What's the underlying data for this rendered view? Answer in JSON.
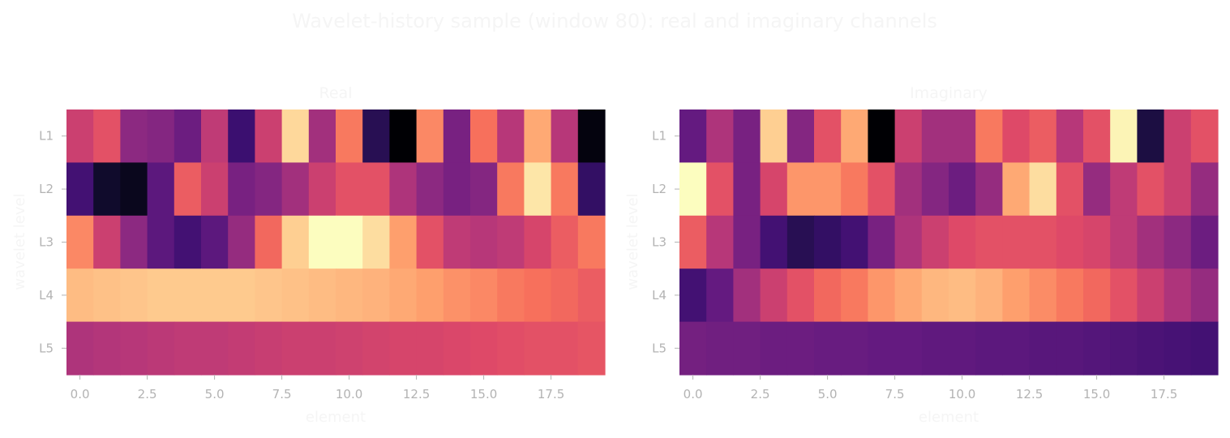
{
  "figure": {
    "title": "Wavelet-history sample (window 80): real and imaginary channels"
  },
  "colors": {
    "text": "#f5f5f5",
    "tick_text": "#b3b3b3",
    "colormap": "magma"
  },
  "chart_data": [
    {
      "type": "heatmap",
      "title": "Real",
      "xlabel": "element",
      "ylabel": "wavelet level",
      "colormap": "magma",
      "x_range": [
        -0.5,
        19.5
      ],
      "x_ticks": [
        "0.0",
        "2.5",
        "5.0",
        "7.5",
        "10.0",
        "12.5",
        "15.0",
        "17.5"
      ],
      "x_tick_values": [
        0,
        2.5,
        5,
        7.5,
        10,
        12.5,
        15,
        17.5
      ],
      "rows": [
        "L1",
        "L2",
        "L3",
        "L4",
        "L5"
      ],
      "columns": [
        0,
        1,
        2,
        3,
        4,
        5,
        6,
        7,
        8,
        9,
        10,
        11,
        12,
        13,
        14,
        15,
        16,
        17,
        18,
        19
      ],
      "values": [
        [
          0.55,
          0.62,
          0.4,
          0.38,
          0.32,
          0.52,
          0.2,
          0.55,
          0.92,
          0.45,
          0.72,
          0.15,
          0.0,
          0.75,
          0.35,
          0.7,
          0.5,
          0.82,
          0.5,
          0.02
        ],
        [
          0.22,
          0.08,
          0.05,
          0.28,
          0.65,
          0.55,
          0.35,
          0.38,
          0.45,
          0.55,
          0.62,
          0.62,
          0.48,
          0.4,
          0.35,
          0.38,
          0.72,
          0.95,
          0.72,
          0.18
        ],
        [
          0.75,
          0.55,
          0.4,
          0.28,
          0.22,
          0.28,
          0.42,
          0.68,
          0.9,
          1.0,
          1.0,
          0.93,
          0.8,
          0.62,
          0.52,
          0.5,
          0.52,
          0.58,
          0.65,
          0.72
        ],
        [
          0.86,
          0.87,
          0.88,
          0.89,
          0.89,
          0.89,
          0.89,
          0.88,
          0.87,
          0.86,
          0.85,
          0.84,
          0.82,
          0.8,
          0.77,
          0.75,
          0.72,
          0.7,
          0.68,
          0.65
        ],
        [
          0.48,
          0.49,
          0.5,
          0.51,
          0.52,
          0.52,
          0.53,
          0.54,
          0.55,
          0.55,
          0.56,
          0.57,
          0.58,
          0.58,
          0.59,
          0.6,
          0.61,
          0.62,
          0.62,
          0.63
        ]
      ]
    },
    {
      "type": "heatmap",
      "title": "Imaginary",
      "xlabel": "element",
      "ylabel": "wavelet level",
      "colormap": "magma",
      "x_range": [
        -0.5,
        19.5
      ],
      "x_ticks": [
        "0.0",
        "2.5",
        "5.0",
        "7.5",
        "10.0",
        "12.5",
        "15.0",
        "17.5"
      ],
      "x_tick_values": [
        0,
        2.5,
        5,
        7.5,
        10,
        12.5,
        15,
        17.5
      ],
      "rows": [
        "L1",
        "L2",
        "L3",
        "L4",
        "L5"
      ],
      "columns": [
        0,
        1,
        2,
        3,
        4,
        5,
        6,
        7,
        8,
        9,
        10,
        11,
        12,
        13,
        14,
        15,
        16,
        17,
        18,
        19
      ],
      "values": [
        [
          0.3,
          0.48,
          0.35,
          0.9,
          0.38,
          0.62,
          0.82,
          0.0,
          0.55,
          0.45,
          0.45,
          0.72,
          0.6,
          0.65,
          0.5,
          0.62,
          0.98,
          0.12,
          0.55,
          0.62
        ],
        [
          1.0,
          0.62,
          0.35,
          0.58,
          0.78,
          0.78,
          0.72,
          0.62,
          0.45,
          0.38,
          0.32,
          0.42,
          0.82,
          0.93,
          0.62,
          0.42,
          0.52,
          0.62,
          0.55,
          0.42
        ],
        [
          0.65,
          0.5,
          0.35,
          0.22,
          0.15,
          0.18,
          0.22,
          0.35,
          0.48,
          0.55,
          0.6,
          0.62,
          0.62,
          0.62,
          0.6,
          0.58,
          0.52,
          0.45,
          0.4,
          0.32
        ],
        [
          0.22,
          0.3,
          0.45,
          0.55,
          0.62,
          0.68,
          0.72,
          0.78,
          0.82,
          0.85,
          0.86,
          0.84,
          0.8,
          0.76,
          0.72,
          0.68,
          0.62,
          0.55,
          0.48,
          0.42
        ],
        [
          0.34,
          0.33,
          0.33,
          0.32,
          0.32,
          0.31,
          0.31,
          0.3,
          0.3,
          0.29,
          0.29,
          0.28,
          0.28,
          0.27,
          0.27,
          0.26,
          0.25,
          0.24,
          0.23,
          0.22
        ]
      ]
    }
  ]
}
